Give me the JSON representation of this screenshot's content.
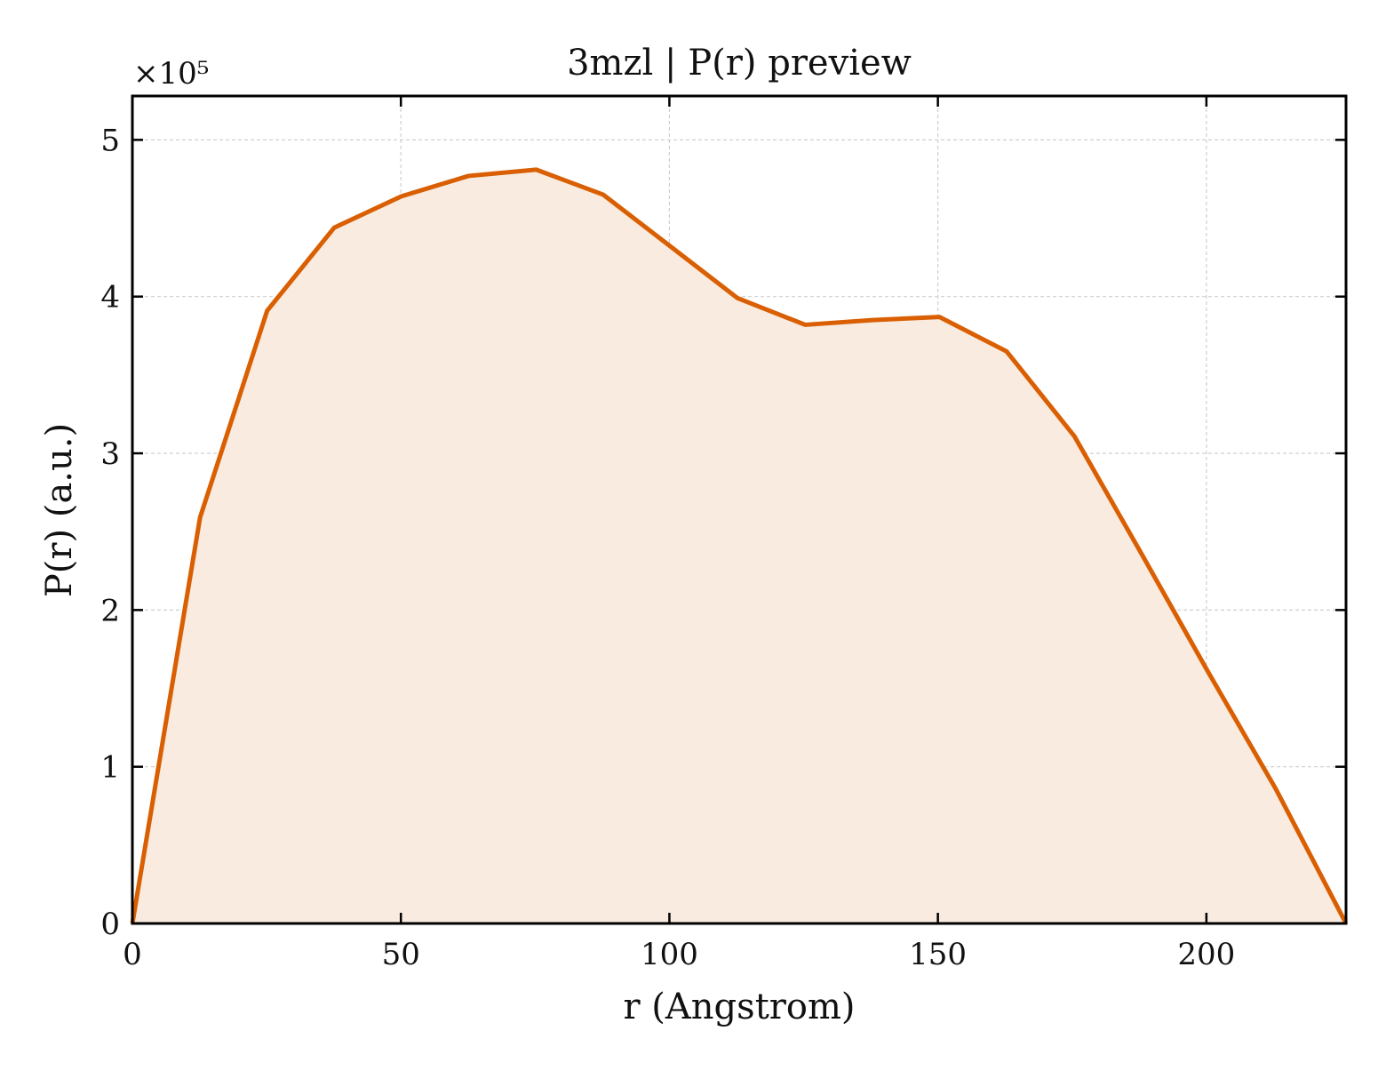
{
  "chart_data": {
    "type": "area",
    "title": "3mzl | P(r) preview",
    "xlabel": "r (Angstrom)",
    "ylabel": "P(r) (a.u.)",
    "y_multiplier_label": "×10⁵",
    "xlim": [
      0,
      226
    ],
    "ylim": [
      0,
      5.28
    ],
    "xticks": [
      0,
      50,
      100,
      150,
      200
    ],
    "yticks": [
      0,
      1,
      2,
      3,
      4,
      5
    ],
    "grid": true,
    "legend": "none",
    "series": [
      {
        "color": "#d95f02",
        "fill_color": "#f9ebe0",
        "x": [
          0,
          12.6,
          25.1,
          37.6,
          50.1,
          62.6,
          75.2,
          87.7,
          100.2,
          112.7,
          125.3,
          137.8,
          150.3,
          162.8,
          175.4,
          187.9,
          200.4,
          212.9,
          226
        ],
        "y": [
          0,
          2.59,
          3.91,
          4.44,
          4.64,
          4.77,
          4.81,
          4.65,
          4.32,
          3.99,
          3.82,
          3.85,
          3.87,
          3.65,
          3.11,
          2.36,
          1.6,
          0.86,
          0
        ]
      }
    ]
  }
}
